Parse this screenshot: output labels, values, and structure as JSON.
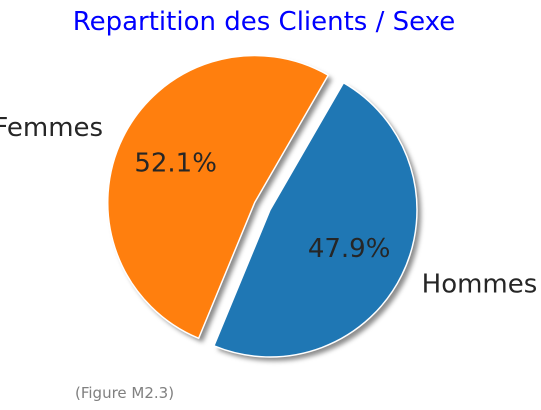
{
  "chart_data": {
    "type": "pie",
    "title": "Repartition des Clients / Sexe",
    "categories": [
      "Hommes",
      "Femmes"
    ],
    "values": [
      47.9,
      52.1
    ],
    "percent_labels": [
      "47.9%",
      "52.1%"
    ],
    "colors": [
      "#1f77b4",
      "#ff7f0e"
    ],
    "exploded": [
      false,
      true
    ],
    "shadow": true
  },
  "colors": {
    "title": "#0000ff",
    "caption": "#808080"
  },
  "caption": "(Figure M2.3)"
}
